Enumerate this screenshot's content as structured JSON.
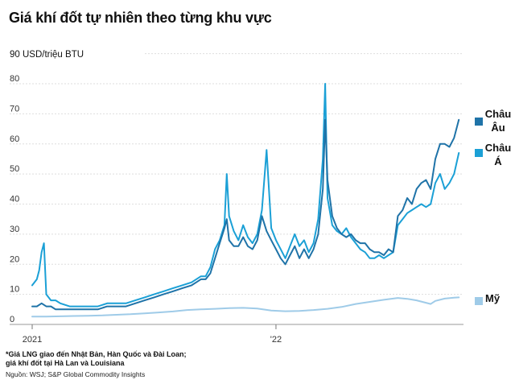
{
  "title": "Giá khí đốt tự nhiên theo từng khu vực",
  "footnote_line1": "*Giá LNG giao đến Nhật Bản, Hàn Quốc và Đài Loan;",
  "footnote_line2": "giá khí đốt tại Hà Lan và Louisiana",
  "source": "Nguồn: WSJ; S&P Global Commodity Insights",
  "chart_data": {
    "type": "line",
    "unit_label": "90 USD/triệu BTU",
    "ylim": [
      0,
      90
    ],
    "y_ticks": [
      "80",
      "70",
      "60",
      "50",
      "40",
      "30",
      "20",
      "10",
      "0"
    ],
    "x_tick_labels": [
      {
        "label": "2021",
        "x": 0
      },
      {
        "label": "'22",
        "x": 52
      }
    ],
    "xlim": [
      0,
      92
    ],
    "grid": true,
    "legend": "right",
    "series": [
      {
        "name": "Châu Âu",
        "name_line1": "Châu",
        "name_line2": "Âu",
        "color": "#1f73a8",
        "points": [
          [
            0,
            6
          ],
          [
            1,
            6
          ],
          [
            2,
            7
          ],
          [
            3,
            6
          ],
          [
            4,
            6
          ],
          [
            5,
            5
          ],
          [
            6,
            5
          ],
          [
            8,
            5
          ],
          [
            10,
            5
          ],
          [
            12,
            5
          ],
          [
            14,
            5
          ],
          [
            16,
            6
          ],
          [
            18,
            6
          ],
          [
            20,
            6
          ],
          [
            22,
            7
          ],
          [
            24,
            8
          ],
          [
            26,
            9
          ],
          [
            28,
            10
          ],
          [
            30,
            11
          ],
          [
            32,
            12
          ],
          [
            34,
            13
          ],
          [
            35,
            14
          ],
          [
            36,
            15
          ],
          [
            37,
            15
          ],
          [
            38,
            17
          ],
          [
            39,
            22
          ],
          [
            40,
            27
          ],
          [
            41,
            32
          ],
          [
            41.5,
            35
          ],
          [
            42,
            28
          ],
          [
            43,
            26
          ],
          [
            44,
            26
          ],
          [
            45,
            29
          ],
          [
            46,
            26
          ],
          [
            47,
            25
          ],
          [
            48,
            28
          ],
          [
            49,
            36
          ],
          [
            50,
            31
          ],
          [
            51,
            28
          ],
          [
            52,
            25
          ],
          [
            53,
            22
          ],
          [
            54,
            20
          ],
          [
            55,
            23
          ],
          [
            56,
            26
          ],
          [
            57,
            22
          ],
          [
            58,
            25
          ],
          [
            59,
            22
          ],
          [
            60,
            25
          ],
          [
            61,
            30
          ],
          [
            62,
            45
          ],
          [
            62.5,
            68
          ],
          [
            63,
            48
          ],
          [
            64,
            36
          ],
          [
            65,
            32
          ],
          [
            66,
            30
          ],
          [
            67,
            29
          ],
          [
            68,
            30
          ],
          [
            69,
            28
          ],
          [
            70,
            27
          ],
          [
            71,
            27
          ],
          [
            72,
            25
          ],
          [
            73,
            24
          ],
          [
            74,
            24
          ],
          [
            75,
            23
          ],
          [
            76,
            25
          ],
          [
            77,
            24
          ],
          [
            78,
            36
          ],
          [
            79,
            38
          ],
          [
            80,
            42
          ],
          [
            81,
            40
          ],
          [
            82,
            45
          ],
          [
            83,
            47
          ],
          [
            84,
            48
          ],
          [
            85,
            45
          ],
          [
            86,
            55
          ],
          [
            87,
            60
          ],
          [
            88,
            60
          ],
          [
            89,
            59
          ],
          [
            90,
            62
          ],
          [
            91,
            68
          ]
        ]
      },
      {
        "name": "Châu Á",
        "name_line1": "Châu",
        "name_line2": "Á",
        "color": "#1ba0d6",
        "points": [
          [
            0,
            13
          ],
          [
            1,
            15
          ],
          [
            1.5,
            18
          ],
          [
            2,
            24
          ],
          [
            2.5,
            27
          ],
          [
            3,
            10
          ],
          [
            4,
            8
          ],
          [
            5,
            8
          ],
          [
            6,
            7
          ],
          [
            8,
            6
          ],
          [
            10,
            6
          ],
          [
            12,
            6
          ],
          [
            14,
            6
          ],
          [
            16,
            7
          ],
          [
            18,
            7
          ],
          [
            20,
            7
          ],
          [
            22,
            8
          ],
          [
            24,
            9
          ],
          [
            26,
            10
          ],
          [
            28,
            11
          ],
          [
            30,
            12
          ],
          [
            32,
            13
          ],
          [
            34,
            14
          ],
          [
            35,
            15
          ],
          [
            36,
            16
          ],
          [
            37,
            16
          ],
          [
            38,
            19
          ],
          [
            39,
            25
          ],
          [
            40,
            28
          ],
          [
            41,
            33
          ],
          [
            41.5,
            50
          ],
          [
            42,
            36
          ],
          [
            43,
            31
          ],
          [
            44,
            28
          ],
          [
            45,
            33
          ],
          [
            46,
            29
          ],
          [
            47,
            27
          ],
          [
            48,
            30
          ],
          [
            49,
            38
          ],
          [
            50,
            58
          ],
          [
            51,
            32
          ],
          [
            52,
            28
          ],
          [
            53,
            25
          ],
          [
            54,
            22
          ],
          [
            55,
            26
          ],
          [
            56,
            30
          ],
          [
            57,
            26
          ],
          [
            58,
            28
          ],
          [
            59,
            24
          ],
          [
            60,
            27
          ],
          [
            61,
            35
          ],
          [
            62,
            55
          ],
          [
            62.5,
            80
          ],
          [
            63,
            42
          ],
          [
            64,
            33
          ],
          [
            65,
            31
          ],
          [
            66,
            30
          ],
          [
            67,
            32
          ],
          [
            68,
            29
          ],
          [
            69,
            27
          ],
          [
            70,
            25
          ],
          [
            71,
            24
          ],
          [
            72,
            22
          ],
          [
            73,
            22
          ],
          [
            74,
            23
          ],
          [
            75,
            22
          ],
          [
            76,
            23
          ],
          [
            77,
            24
          ],
          [
            78,
            33
          ],
          [
            79,
            35
          ],
          [
            80,
            37
          ],
          [
            81,
            38
          ],
          [
            82,
            39
          ],
          [
            83,
            40
          ],
          [
            84,
            39
          ],
          [
            85,
            40
          ],
          [
            86,
            47
          ],
          [
            87,
            50
          ],
          [
            88,
            45
          ],
          [
            89,
            47
          ],
          [
            90,
            50
          ],
          [
            91,
            57
          ]
        ]
      },
      {
        "name": "Mỹ",
        "color": "#9fcbe8",
        "points": [
          [
            0,
            2.6
          ],
          [
            3,
            2.6
          ],
          [
            6,
            2.7
          ],
          [
            9,
            2.8
          ],
          [
            12,
            2.9
          ],
          [
            15,
            3.0
          ],
          [
            18,
            3.2
          ],
          [
            21,
            3.4
          ],
          [
            24,
            3.7
          ],
          [
            27,
            4.0
          ],
          [
            30,
            4.3
          ],
          [
            33,
            4.8
          ],
          [
            36,
            5.0
          ],
          [
            39,
            5.2
          ],
          [
            42,
            5.4
          ],
          [
            45,
            5.5
          ],
          [
            48,
            5.3
          ],
          [
            51,
            4.6
          ],
          [
            54,
            4.4
          ],
          [
            57,
            4.5
          ],
          [
            60,
            4.8
          ],
          [
            63,
            5.2
          ],
          [
            66,
            5.8
          ],
          [
            69,
            6.8
          ],
          [
            72,
            7.5
          ],
          [
            75,
            8.2
          ],
          [
            78,
            8.8
          ],
          [
            80,
            8.5
          ],
          [
            82,
            8.0
          ],
          [
            84,
            7.2
          ],
          [
            85,
            6.8
          ],
          [
            86,
            7.8
          ],
          [
            88,
            8.6
          ],
          [
            90,
            8.9
          ],
          [
            91,
            9.0
          ]
        ]
      }
    ]
  }
}
